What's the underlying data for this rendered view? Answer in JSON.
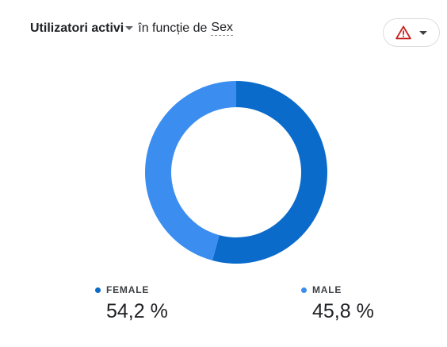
{
  "header": {
    "metric": "Utilizatori activi",
    "connector": "în funcție de",
    "dimension": "Sex"
  },
  "warning_button": {
    "icon": "warning-triangle-icon",
    "icon_color": "#c5221f"
  },
  "chart_data": {
    "type": "pie",
    "donut": true,
    "categories": [
      "FEMALE",
      "MALE"
    ],
    "values": [
      54.2,
      45.8
    ],
    "colors": [
      "#0b6bcb",
      "#3b8ef0"
    ],
    "legend_position": "bottom"
  },
  "legend": [
    {
      "label": "FEMALE",
      "value": "54,2 %",
      "color": "#0b6bcb"
    },
    {
      "label": "MALE",
      "value": "45,8 %",
      "color": "#3b8ef0"
    }
  ]
}
